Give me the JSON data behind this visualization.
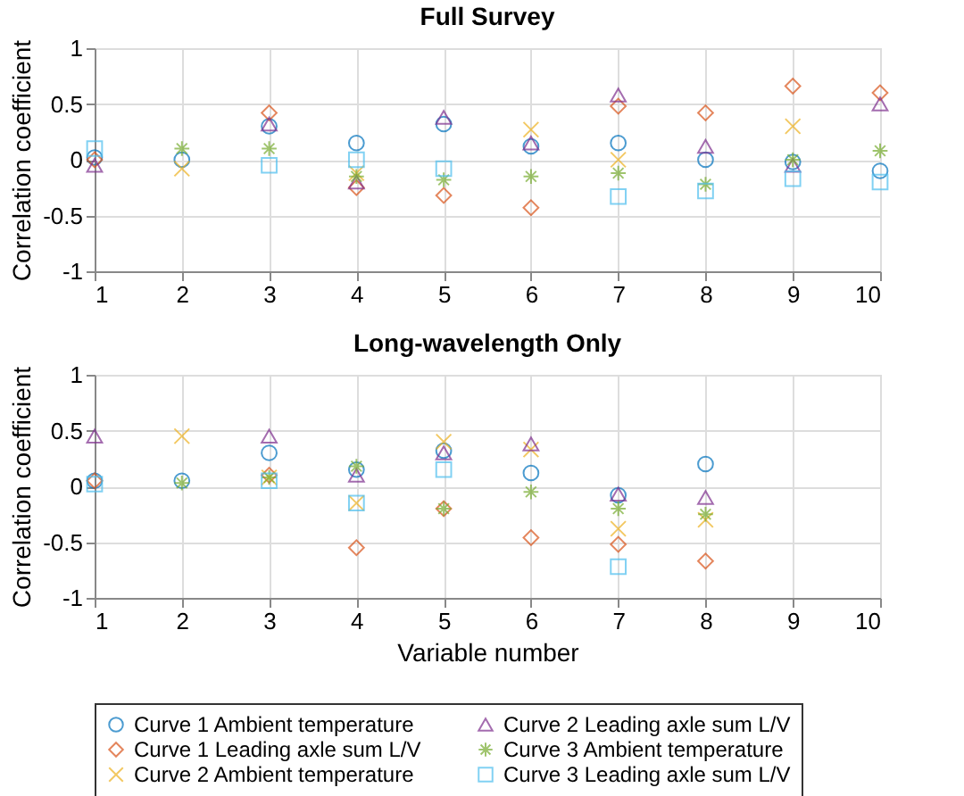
{
  "chart_data": [
    {
      "type": "scatter",
      "title": "Full Survey",
      "ylabel": "Correlation coefficient",
      "x": [
        1,
        2,
        3,
        4,
        5,
        6,
        7,
        8,
        9,
        10
      ],
      "xlim": [
        1,
        10
      ],
      "xticks": [
        1,
        2,
        3,
        4,
        5,
        6,
        7,
        8,
        9,
        10
      ],
      "ylim": [
        -1,
        1
      ],
      "yticks": [
        -1,
        -0.5,
        0,
        0.5,
        1
      ],
      "grid": true,
      "legend": "bottom",
      "series": [
        {
          "name": "Curve 1 Ambient temperature",
          "color": "#0072bd",
          "marker": "circle",
          "values": [
            0.02,
            0.0,
            0.3,
            0.15,
            0.32,
            0.12,
            0.15,
            0.0,
            -0.02,
            -0.1
          ]
        },
        {
          "name": "Curve 1 Leading axle sum L/V",
          "color": "#d95319",
          "marker": "diamond",
          "values": [
            0.0,
            null,
            0.42,
            -0.25,
            -0.32,
            -0.43,
            0.48,
            0.42,
            0.66,
            0.6
          ]
        },
        {
          "name": "Curve 2 Ambient temperature",
          "color": "#edb120",
          "marker": "cross",
          "values": [
            null,
            -0.08,
            null,
            -0.12,
            null,
            0.27,
            0.0,
            null,
            0.3,
            null
          ]
        },
        {
          "name": "Curve 2 Leading axle sum L/V",
          "color": "#7e2f8e",
          "marker": "triangle",
          "values": [
            -0.05,
            null,
            0.32,
            -0.2,
            0.38,
            0.15,
            0.58,
            0.12,
            -0.05,
            0.5
          ]
        },
        {
          "name": "Curve 3 Ambient temperature",
          "color": "#77ac30",
          "values": [
            null,
            0.1,
            0.1,
            -0.15,
            -0.18,
            -0.15,
            -0.12,
            -0.22,
            0.0,
            0.08
          ]
        },
        {
          "name": "Curve 3 Leading axle sum L/V",
          "color": "#4dbeee",
          "marker": "square",
          "values": [
            0.1,
            null,
            -0.05,
            0.0,
            -0.08,
            null,
            -0.33,
            -0.28,
            -0.17,
            -0.2
          ]
        }
      ]
    },
    {
      "type": "scatter",
      "title": "Long-wavelength Only",
      "xlabel": "Variable number",
      "ylabel": "Correlation coefficient",
      "x": [
        1,
        2,
        3,
        4,
        5,
        6,
        7,
        8
      ],
      "xlim": [
        1,
        10
      ],
      "xticks": [
        1,
        2,
        3,
        4,
        5,
        6,
        7,
        8,
        9,
        10
      ],
      "ylim": [
        -1,
        1
      ],
      "yticks": [
        -1,
        -0.5,
        0,
        0.5,
        1
      ],
      "grid": true,
      "legend": "bottom",
      "series": [
        {
          "name": "Curve 1 Ambient temperature",
          "color": "#0072bd",
          "marker": "circle",
          "values": [
            0.05,
            0.05,
            0.3,
            0.15,
            0.32,
            0.12,
            -0.08,
            0.2
          ]
        },
        {
          "name": "Curve 1 Leading axle sum L/V",
          "color": "#d95319",
          "marker": "diamond",
          "values": [
            0.05,
            null,
            0.1,
            -0.55,
            -0.2,
            -0.46,
            -0.52,
            -0.67
          ]
        },
        {
          "name": "Curve 2 Ambient temperature",
          "color": "#edb120",
          "marker": "cross",
          "values": [
            null,
            0.45,
            0.08,
            -0.15,
            0.4,
            0.33,
            -0.38,
            -0.3
          ]
        },
        {
          "name": "Curve 2 Leading axle sum L/V",
          "color": "#7e2f8e",
          "marker": "triangle",
          "values": [
            0.45,
            null,
            0.45,
            0.1,
            0.3,
            0.38,
            -0.07,
            -0.1
          ]
        },
        {
          "name": "Curve 3 Ambient temperature",
          "color": "#77ac30",
          "values": [
            null,
            0.03,
            0.08,
            0.18,
            -0.2,
            -0.05,
            -0.2,
            -0.25
          ]
        },
        {
          "name": "Curve 3 Leading axle sum L/V",
          "color": "#4dbeee",
          "marker": "square",
          "values": [
            0.02,
            null,
            0.05,
            -0.15,
            0.15,
            null,
            -0.72,
            null
          ]
        }
      ]
    }
  ]
}
